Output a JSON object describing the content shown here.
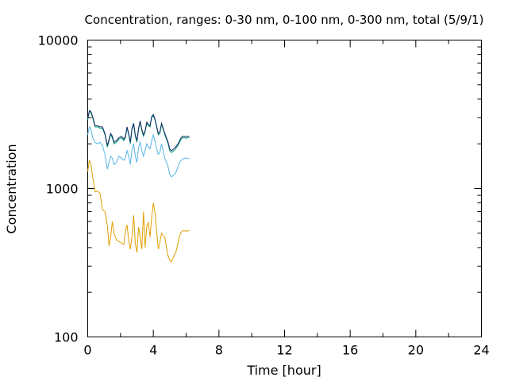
{
  "chart_data": {
    "type": "line",
    "title": "Concentration, ranges: 0-30 nm, 0-100 nm, 0-300 nm, total (5/9/1)",
    "xlabel": "Time [hour]",
    "ylabel": "Concentration",
    "xlim": [
      0,
      24
    ],
    "ylim": [
      100,
      10000
    ],
    "yscale": "log",
    "grid": false,
    "x_ticks": [
      0,
      4,
      8,
      12,
      16,
      20,
      24
    ],
    "y_ticks": [
      100,
      1000,
      10000
    ],
    "x_tick_labels": [
      "0",
      "4",
      "8",
      "12",
      "16",
      "20",
      "24"
    ],
    "y_tick_labels": [
      "100",
      "1000",
      "10000"
    ],
    "series": [
      {
        "color": "#e0a000",
        "x": [
          0,
          0.1,
          0.2,
          0.3,
          0.45,
          0.6,
          0.75,
          0.9,
          1.05,
          1.2,
          1.3,
          1.4,
          1.5,
          1.6,
          1.75,
          1.9,
          2.05,
          2.2,
          2.3,
          2.4,
          2.5,
          2.6,
          2.7,
          2.8,
          2.9,
          3.0,
          3.1,
          3.2,
          3.3,
          3.4,
          3.5,
          3.6,
          3.7,
          3.8,
          3.9,
          4.0,
          4.1,
          4.2,
          4.3,
          4.4,
          4.5,
          4.6,
          4.7,
          4.8,
          4.9,
          5.0,
          5.1,
          5.2,
          5.3,
          5.4,
          5.5,
          5.6,
          5.7,
          5.8,
          5.9,
          6.0,
          6.1,
          6.2
        ],
        "y": [
          1300,
          1550,
          1450,
          1200,
          950,
          960,
          930,
          720,
          700,
          560,
          410,
          470,
          600,
          500,
          450,
          440,
          430,
          420,
          520,
          570,
          440,
          390,
          480,
          660,
          430,
          370,
          550,
          470,
          390,
          700,
          400,
          560,
          590,
          470,
          640,
          800,
          690,
          520,
          390,
          430,
          500,
          480,
          470,
          400,
          350,
          330,
          320,
          340,
          360,
          380,
          430,
          480,
          510,
          520,
          520,
          515,
          520,
          520
        ]
      },
      {
        "color": "#56b4e9",
        "x": [
          0,
          0.1,
          0.2,
          0.3,
          0.45,
          0.6,
          0.75,
          0.9,
          1.05,
          1.2,
          1.3,
          1.4,
          1.5,
          1.6,
          1.75,
          1.9,
          2.05,
          2.2,
          2.3,
          2.4,
          2.5,
          2.6,
          2.7,
          2.8,
          2.9,
          3.0,
          3.1,
          3.2,
          3.3,
          3.4,
          3.5,
          3.6,
          3.7,
          3.8,
          3.9,
          4.0,
          4.1,
          4.2,
          4.3,
          4.4,
          4.5,
          4.6,
          4.7,
          4.8,
          4.9,
          5.0,
          5.1,
          5.2,
          5.3,
          5.4,
          5.5,
          5.6,
          5.7,
          5.8,
          5.9,
          6.0,
          6.1,
          6.2
        ],
        "y": [
          2300,
          2600,
          2500,
          2200,
          2050,
          2000,
          2050,
          1950,
          1700,
          1350,
          1500,
          1650,
          1600,
          1450,
          1500,
          1650,
          1600,
          1550,
          1600,
          1800,
          1650,
          1450,
          1850,
          2000,
          1650,
          1500,
          1900,
          2050,
          1800,
          1650,
          1800,
          2000,
          1900,
          1850,
          2100,
          2300,
          2100,
          1850,
          1700,
          1750,
          2000,
          1800,
          1600,
          1500,
          1400,
          1250,
          1200,
          1220,
          1250,
          1300,
          1400,
          1500,
          1550,
          1580,
          1600,
          1600,
          1590,
          1600
        ]
      },
      {
        "color": "#009e73",
        "x": [
          0,
          0.1,
          0.2,
          0.3,
          0.45,
          0.6,
          0.75,
          0.9,
          1.05,
          1.2,
          1.3,
          1.4,
          1.5,
          1.6,
          1.75,
          1.9,
          2.05,
          2.2,
          2.3,
          2.4,
          2.5,
          2.6,
          2.7,
          2.8,
          2.9,
          3.0,
          3.1,
          3.2,
          3.3,
          3.4,
          3.5,
          3.6,
          3.7,
          3.8,
          3.9,
          4.0,
          4.1,
          4.2,
          4.3,
          4.4,
          4.5,
          4.6,
          4.7,
          4.8,
          4.9,
          5.0,
          5.1,
          5.2,
          5.3,
          5.4,
          5.5,
          5.6,
          5.7,
          5.8,
          5.9,
          6.0,
          6.1,
          6.2
        ],
        "y": [
          2900,
          3300,
          3250,
          3000,
          2600,
          2600,
          2550,
          2550,
          2300,
          1900,
          2100,
          2300,
          2200,
          2000,
          2050,
          2150,
          2200,
          2100,
          2200,
          2550,
          2300,
          2000,
          2500,
          2700,
          2250,
          2050,
          2500,
          2800,
          2450,
          2250,
          2400,
          2750,
          2650,
          2600,
          3000,
          3100,
          2900,
          2600,
          2300,
          2350,
          2700,
          2500,
          2300,
          2150,
          2000,
          1800,
          1750,
          1780,
          1820,
          1880,
          1950,
          2050,
          2150,
          2200,
          2200,
          2180,
          2200,
          2200
        ]
      },
      {
        "color": "#1a2a6c",
        "x": [
          0,
          0.1,
          0.2,
          0.3,
          0.45,
          0.6,
          0.75,
          0.9,
          1.05,
          1.2,
          1.3,
          1.4,
          1.5,
          1.6,
          1.75,
          1.9,
          2.05,
          2.2,
          2.3,
          2.4,
          2.5,
          2.6,
          2.7,
          2.8,
          2.9,
          3.0,
          3.1,
          3.2,
          3.3,
          3.4,
          3.5,
          3.6,
          3.7,
          3.8,
          3.9,
          4.0,
          4.1,
          4.2,
          4.3,
          4.4,
          4.5,
          4.6,
          4.7,
          4.8,
          4.9,
          5.0,
          5.1,
          5.2,
          5.3,
          5.4,
          5.5,
          5.6,
          5.7,
          5.8,
          5.9,
          6.0,
          6.1,
          6.2
        ],
        "y": [
          2950,
          3350,
          3300,
          3050,
          2650,
          2650,
          2600,
          2600,
          2350,
          1950,
          2150,
          2350,
          2250,
          2050,
          2100,
          2200,
          2250,
          2150,
          2250,
          2600,
          2350,
          2050,
          2550,
          2750,
          2300,
          2100,
          2550,
          2850,
          2500,
          2300,
          2450,
          2800,
          2700,
          2650,
          3050,
          3150,
          2950,
          2650,
          2350,
          2400,
          2750,
          2550,
          2350,
          2200,
          2050,
          1850,
          1800,
          1830,
          1870,
          1930,
          2000,
          2100,
          2200,
          2250,
          2250,
          2230,
          2250,
          2250
        ]
      }
    ]
  }
}
